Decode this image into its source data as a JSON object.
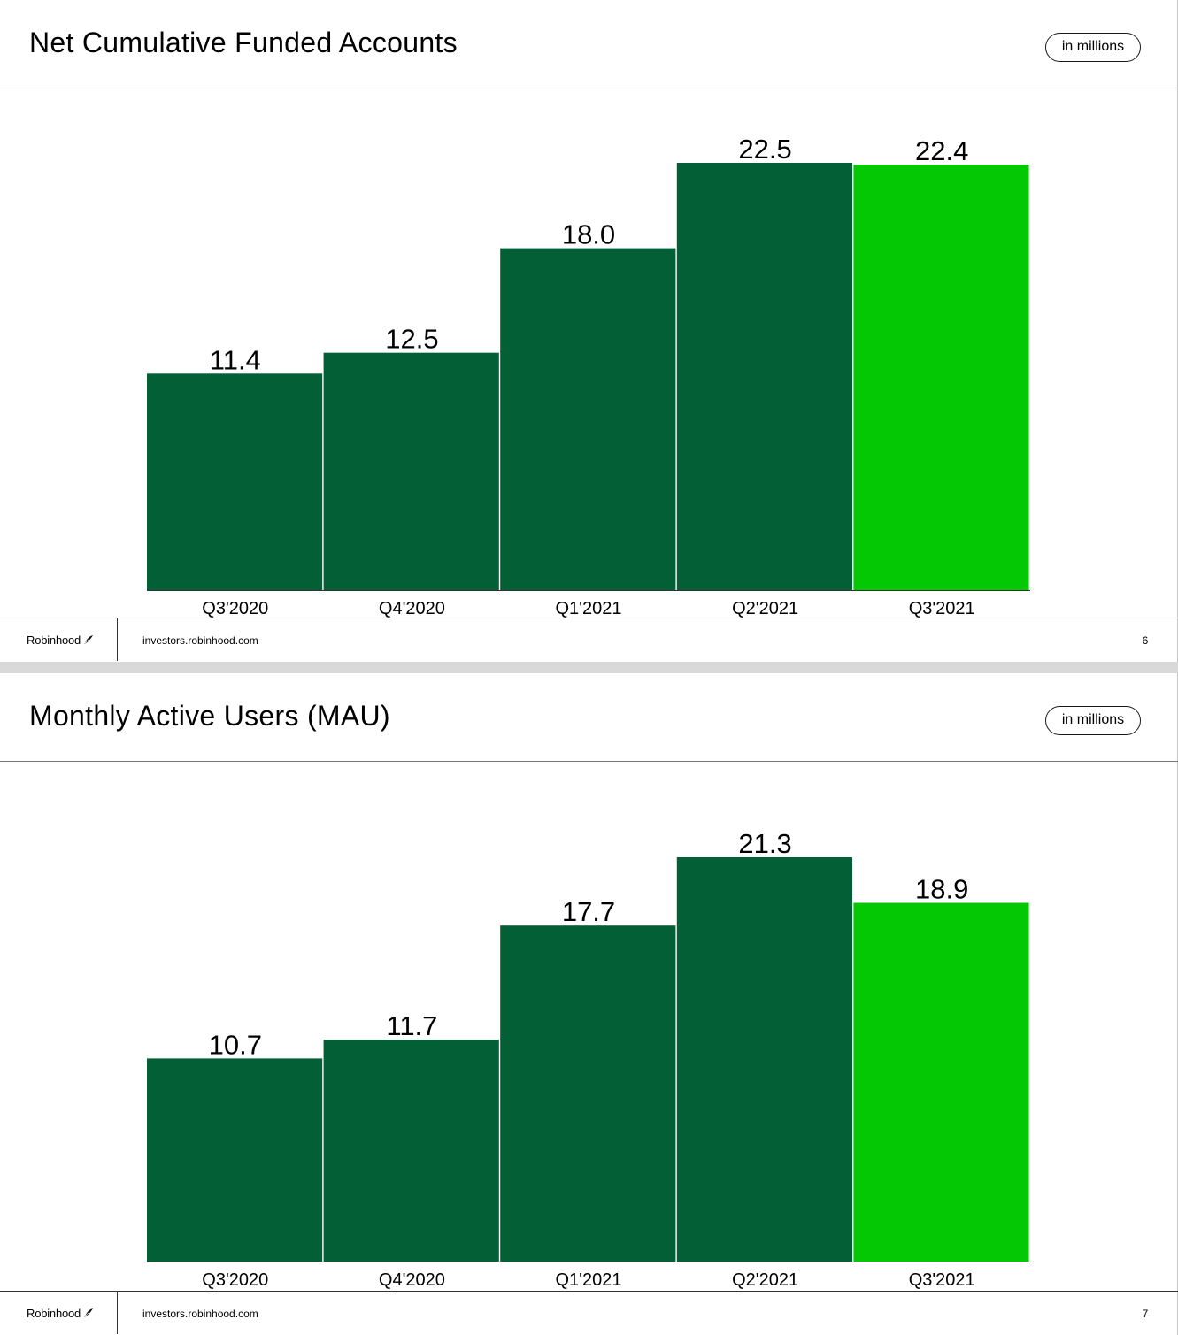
{
  "footer": {
    "brand": "Robinhood",
    "url": "investors.robinhood.com"
  },
  "slides": [
    {
      "title": "Net Cumulative Funded Accounts",
      "unit_badge": "in millions",
      "page_number": "6"
    },
    {
      "title": "Monthly Active Users (MAU)",
      "unit_badge": "in millions",
      "page_number": "7"
    }
  ],
  "colors": {
    "bar_default": "#035f36",
    "bar_highlight": "#05c805",
    "baseline": "#333333"
  },
  "chart_data": [
    {
      "type": "bar",
      "title": "Net Cumulative Funded Accounts",
      "categories": [
        "Q3'2020",
        "Q4'2020",
        "Q1'2021",
        "Q2'2021",
        "Q3'2021"
      ],
      "values": [
        11.4,
        12.5,
        18.0,
        22.5,
        22.4
      ],
      "value_labels": [
        "11.4",
        "12.5",
        "18.0",
        "22.5",
        "22.4"
      ],
      "highlight_index": 4,
      "ylim": [
        0,
        22.5
      ],
      "grid": false,
      "legend": "none"
    },
    {
      "type": "bar",
      "title": "Monthly Active Users (MAU)",
      "categories": [
        "Q3'2020",
        "Q4'2020",
        "Q1'2021",
        "Q2'2021",
        "Q3'2021"
      ],
      "values": [
        10.7,
        11.7,
        17.7,
        21.3,
        18.9
      ],
      "value_labels": [
        "10.7",
        "11.7",
        "17.7",
        "21.3",
        "18.9"
      ],
      "highlight_index": 4,
      "ylim": [
        0,
        21.3
      ],
      "grid": false,
      "legend": "none"
    }
  ]
}
